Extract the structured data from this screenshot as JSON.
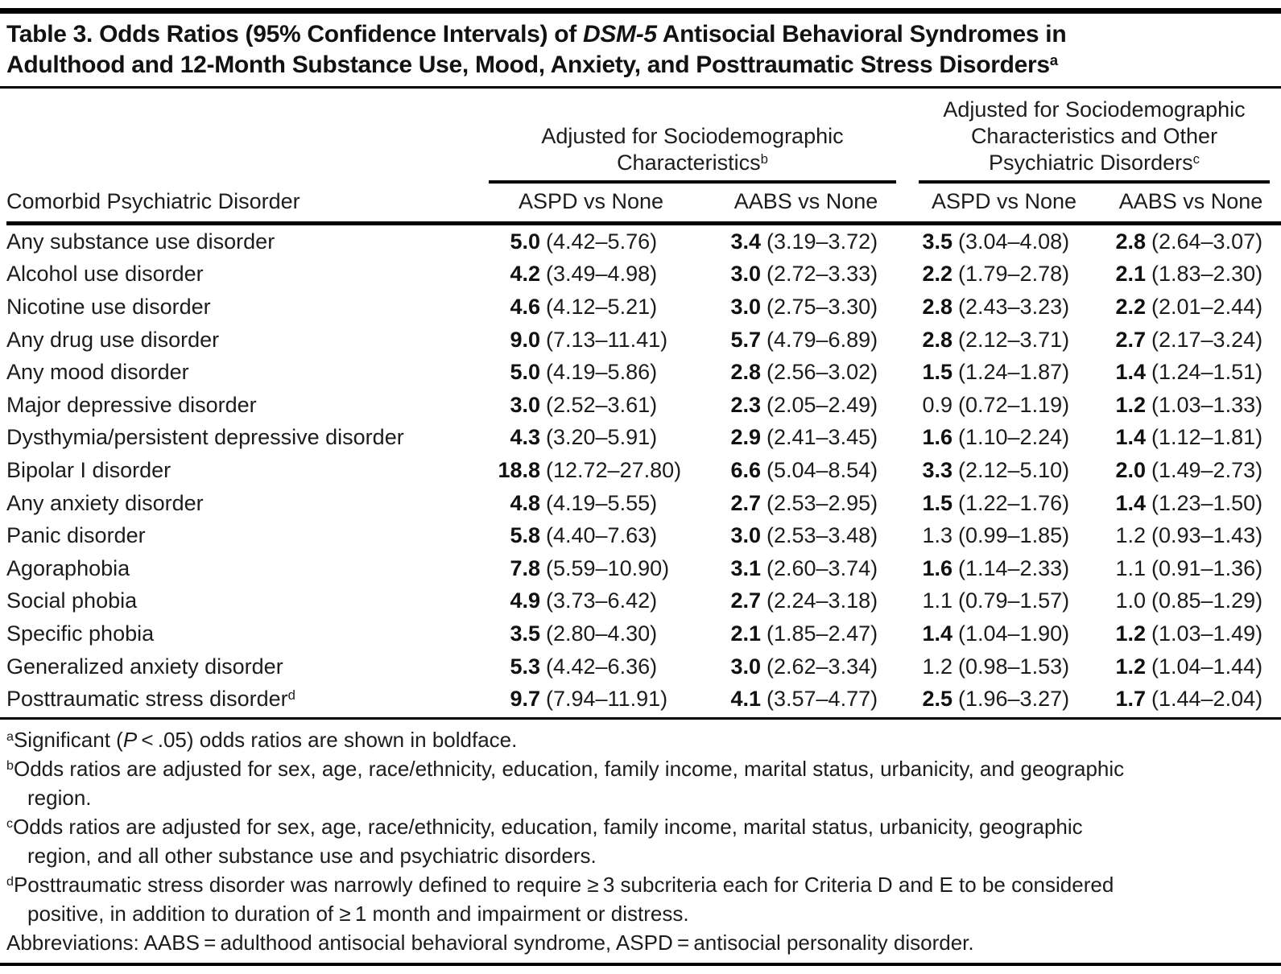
{
  "title": {
    "lines": [
      [
        {
          "t": "Table 3. Odds Ratios (95% Confidence Intervals) of "
        },
        {
          "t": "DSM-5",
          "italic": true
        },
        {
          "t": " Antisocial Behavioral Syndromes in"
        }
      ],
      [
        {
          "t": "Adulthood and 12-Month Substance Use, Mood, Anxiety, and Posttraumatic Stress Disorders"
        },
        {
          "t": "a",
          "sup": true
        }
      ]
    ]
  },
  "header": {
    "row_label": "Comorbid Psychiatric Disorder",
    "groups": [
      {
        "lines": [
          "Adjusted for Sociodemographic",
          "Characteristics"
        ],
        "sup": "b",
        "columns": [
          "ASPD vs None",
          "AABS vs None"
        ]
      },
      {
        "lines": [
          "Adjusted for Sociodemographic",
          "Characteristics and Other",
          "Psychiatric Disorders"
        ],
        "sup": "c",
        "columns": [
          "ASPD vs None",
          "AABS vs None"
        ]
      }
    ]
  },
  "rows": [
    {
      "label": "Any substance use disorder",
      "cells": [
        {
          "or": "5.0",
          "ci": "(4.42–5.76)",
          "bold": true
        },
        {
          "or": "3.4",
          "ci": "(3.19–3.72)",
          "bold": true
        },
        {
          "or": "3.5",
          "ci": "(3.04–4.08)",
          "bold": true
        },
        {
          "or": "2.8",
          "ci": "(2.64–3.07)",
          "bold": true
        }
      ]
    },
    {
      "label": "Alcohol use disorder",
      "cells": [
        {
          "or": "4.2",
          "ci": "(3.49–4.98)",
          "bold": true
        },
        {
          "or": "3.0",
          "ci": "(2.72–3.33)",
          "bold": true
        },
        {
          "or": "2.2",
          "ci": "(1.79–2.78)",
          "bold": true
        },
        {
          "or": "2.1",
          "ci": "(1.83–2.30)",
          "bold": true
        }
      ]
    },
    {
      "label": "Nicotine use disorder",
      "cells": [
        {
          "or": "4.6",
          "ci": "(4.12–5.21)",
          "bold": true
        },
        {
          "or": "3.0",
          "ci": "(2.75–3.30)",
          "bold": true
        },
        {
          "or": "2.8",
          "ci": "(2.43–3.23)",
          "bold": true
        },
        {
          "or": "2.2",
          "ci": "(2.01–2.44)",
          "bold": true
        }
      ]
    },
    {
      "label": "Any drug use disorder",
      "cells": [
        {
          "or": "9.0",
          "ci": "(7.13–11.41)",
          "bold": true
        },
        {
          "or": "5.7",
          "ci": "(4.79–6.89)",
          "bold": true
        },
        {
          "or": "2.8",
          "ci": "(2.12–3.71)",
          "bold": true
        },
        {
          "or": "2.7",
          "ci": "(2.17–3.24)",
          "bold": true
        }
      ]
    },
    {
      "label": "Any mood disorder",
      "cells": [
        {
          "or": "5.0",
          "ci": "(4.19–5.86)",
          "bold": true
        },
        {
          "or": "2.8",
          "ci": "(2.56–3.02)",
          "bold": true
        },
        {
          "or": "1.5",
          "ci": "(1.24–1.87)",
          "bold": true
        },
        {
          "or": "1.4",
          "ci": "(1.24–1.51)",
          "bold": true
        }
      ]
    },
    {
      "label": "Major depressive disorder",
      "cells": [
        {
          "or": "3.0",
          "ci": "(2.52–3.61)",
          "bold": true
        },
        {
          "or": "2.3",
          "ci": "(2.05–2.49)",
          "bold": true
        },
        {
          "or": "0.9",
          "ci": "(0.72–1.19)",
          "bold": false
        },
        {
          "or": "1.2",
          "ci": "(1.03–1.33)",
          "bold": true
        }
      ]
    },
    {
      "label": "Dysthymia/persistent depressive disorder",
      "cells": [
        {
          "or": "4.3",
          "ci": "(3.20–5.91)",
          "bold": true
        },
        {
          "or": "2.9",
          "ci": "(2.41–3.45)",
          "bold": true
        },
        {
          "or": "1.6",
          "ci": "(1.10–2.24)",
          "bold": true
        },
        {
          "or": "1.4",
          "ci": "(1.12–1.81)",
          "bold": true
        }
      ]
    },
    {
      "label": "Bipolar I disorder",
      "cells": [
        {
          "or": "18.8",
          "ci": "(12.72–27.80)",
          "bold": true
        },
        {
          "or": "6.6",
          "ci": "(5.04–8.54)",
          "bold": true
        },
        {
          "or": "3.3",
          "ci": "(2.12–5.10)",
          "bold": true
        },
        {
          "or": "2.0",
          "ci": "(1.49–2.73)",
          "bold": true
        }
      ]
    },
    {
      "label": "Any anxiety disorder",
      "cells": [
        {
          "or": "4.8",
          "ci": "(4.19–5.55)",
          "bold": true
        },
        {
          "or": "2.7",
          "ci": "(2.53–2.95)",
          "bold": true
        },
        {
          "or": "1.5",
          "ci": "(1.22–1.76)",
          "bold": true
        },
        {
          "or": "1.4",
          "ci": "(1.23–1.50)",
          "bold": true
        }
      ]
    },
    {
      "label": "Panic disorder",
      "cells": [
        {
          "or": "5.8",
          "ci": "(4.40–7.63)",
          "bold": true
        },
        {
          "or": "3.0",
          "ci": "(2.53–3.48)",
          "bold": true
        },
        {
          "or": "1.3",
          "ci": "(0.99–1.85)",
          "bold": false
        },
        {
          "or": "1.2",
          "ci": "(0.93–1.43)",
          "bold": false
        }
      ]
    },
    {
      "label": "Agoraphobia",
      "cells": [
        {
          "or": "7.8",
          "ci": "(5.59–10.90)",
          "bold": true
        },
        {
          "or": "3.1",
          "ci": "(2.60–3.74)",
          "bold": true
        },
        {
          "or": "1.6",
          "ci": "(1.14–2.33)",
          "bold": true
        },
        {
          "or": "1.1",
          "ci": "(0.91–1.36)",
          "bold": false
        }
      ]
    },
    {
      "label": "Social phobia",
      "cells": [
        {
          "or": "4.9",
          "ci": "(3.73–6.42)",
          "bold": true
        },
        {
          "or": "2.7",
          "ci": "(2.24–3.18)",
          "bold": true
        },
        {
          "or": "1.1",
          "ci": "(0.79–1.57)",
          "bold": false
        },
        {
          "or": "1.0",
          "ci": "(0.85–1.29)",
          "bold": false
        }
      ]
    },
    {
      "label": "Specific phobia",
      "cells": [
        {
          "or": "3.5",
          "ci": "(2.80–4.30)",
          "bold": true
        },
        {
          "or": "2.1",
          "ci": "(1.85–2.47)",
          "bold": true
        },
        {
          "or": "1.4",
          "ci": "(1.04–1.90)",
          "bold": true
        },
        {
          "or": "1.2",
          "ci": "(1.03–1.49)",
          "bold": true
        }
      ]
    },
    {
      "label": "Generalized anxiety disorder",
      "cells": [
        {
          "or": "5.3",
          "ci": "(4.42–6.36)",
          "bold": true
        },
        {
          "or": "3.0",
          "ci": "(2.62–3.34)",
          "bold": true
        },
        {
          "or": "1.2",
          "ci": "(0.98–1.53)",
          "bold": false
        },
        {
          "or": "1.2",
          "ci": "(1.04–1.44)",
          "bold": true
        }
      ]
    },
    {
      "label": "Posttraumatic stress disorder",
      "sup": "d",
      "cells": [
        {
          "or": "9.7",
          "ci": "(7.94–11.91)",
          "bold": true
        },
        {
          "or": "4.1",
          "ci": "(3.57–4.77)",
          "bold": true
        },
        {
          "or": "2.5",
          "ci": "(1.96–3.27)",
          "bold": true
        },
        {
          "or": "1.7",
          "ci": "(1.44–2.04)",
          "bold": true
        }
      ]
    }
  ],
  "footnotes": [
    {
      "sup": "a",
      "lines": [
        [
          {
            "t": "Significant ("
          },
          {
            "t": "P",
            "italic": true
          },
          {
            "t": " < .05) odds ratios are shown in boldface."
          }
        ]
      ]
    },
    {
      "sup": "b",
      "lines": [
        [
          {
            "t": "Odds ratios are adjusted for sex, age, race/ethnicity, education, family income, marital status, urbanicity, and geographic"
          }
        ],
        [
          {
            "t": "region."
          }
        ]
      ]
    },
    {
      "sup": "c",
      "lines": [
        [
          {
            "t": "Odds ratios are adjusted for sex, age, race/ethnicity, education, family income, marital status, urbanicity, geographic"
          }
        ],
        [
          {
            "t": "region, and all other substance use and psychiatric disorders."
          }
        ]
      ]
    },
    {
      "sup": "d",
      "lines": [
        [
          {
            "t": "Posttraumatic stress disorder was narrowly defined to require ≥ 3 subcriteria each for Criteria D and E to be considered"
          }
        ],
        [
          {
            "t": "positive, in addition to duration of ≥ 1 month and impairment or distress."
          }
        ]
      ]
    }
  ],
  "abbreviations": "Abbreviations: AABS = adulthood antisocial behavioral syndrome, ASPD = antisocial personality disorder.",
  "colors": {
    "text": "#1c1c1c",
    "rule": "#000000",
    "background": "#ffffff"
  }
}
